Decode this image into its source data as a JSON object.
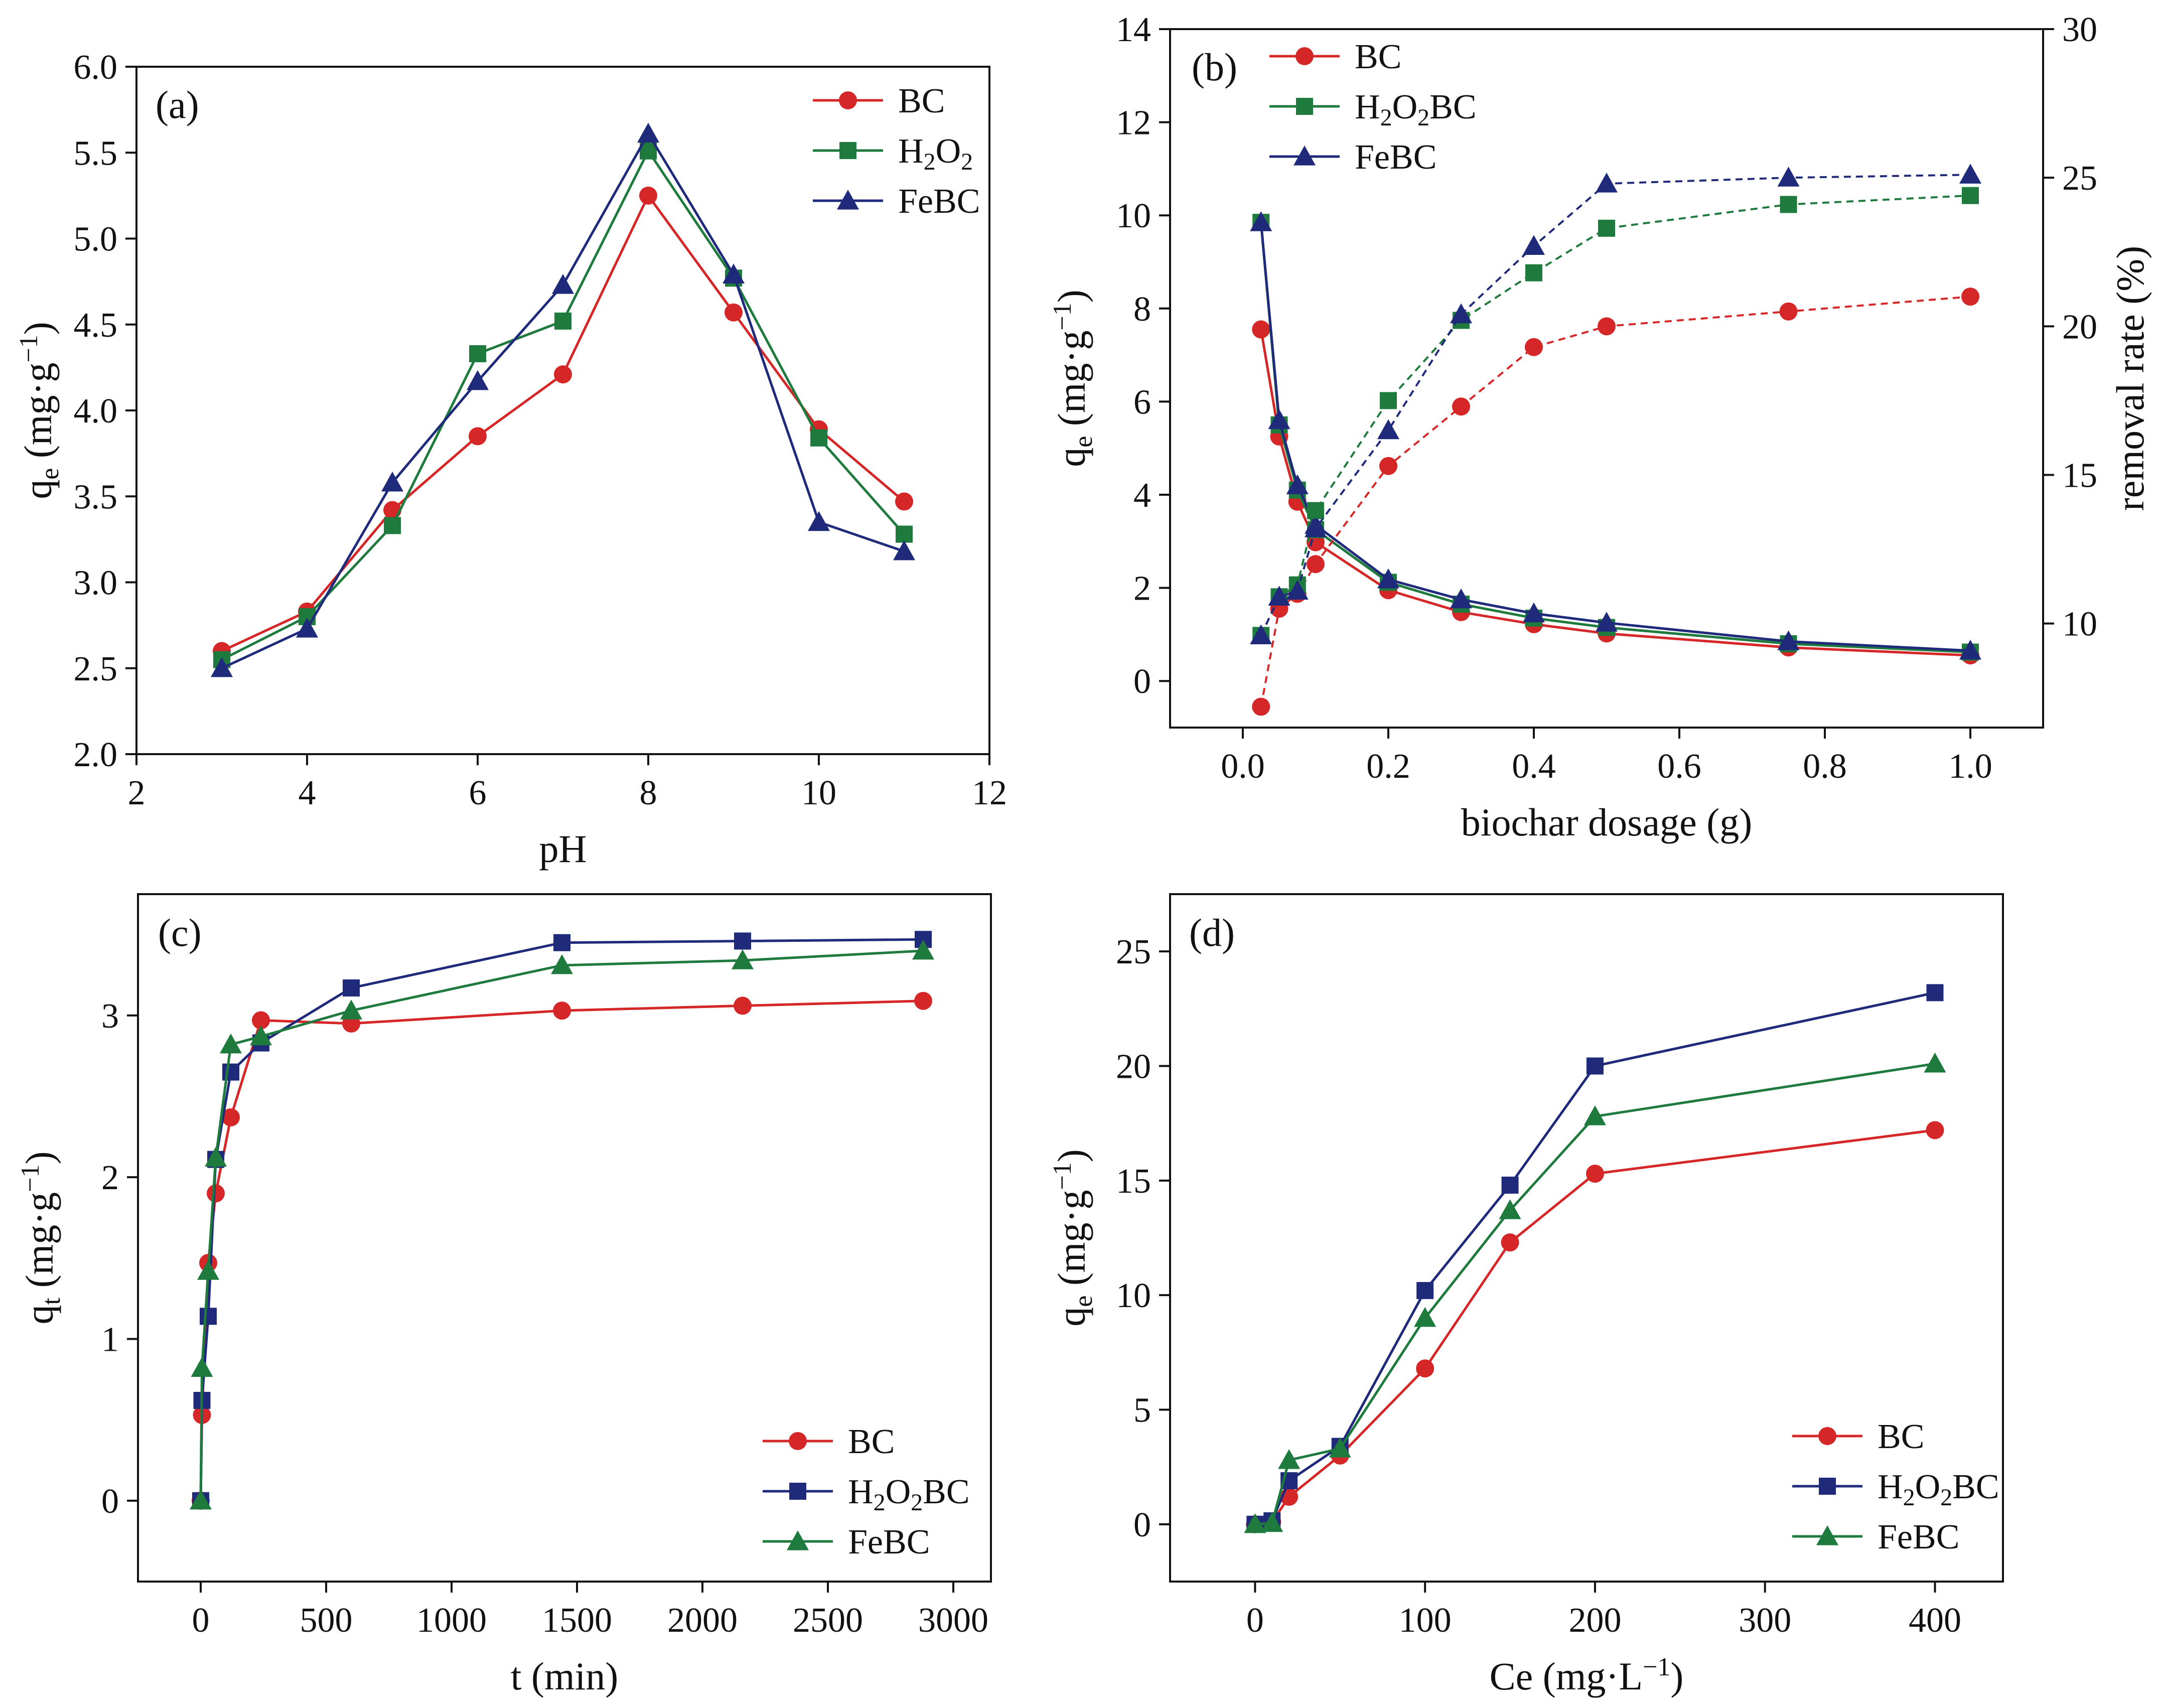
{
  "colors": {
    "BC": "#d62728",
    "H2O2BC": "#1f7a3e",
    "FeBC": "#1f2a7a"
  },
  "chart_data": [
    {
      "panel": "(a)",
      "type": "line",
      "xlabel": "pH",
      "ylabel": "qe (mg·g⁻¹)",
      "ylabel_parts": {
        "base": "q",
        "sub": "e",
        "unit_pre": " (mg·g",
        "sup": "−1",
        "unit_post": ")"
      },
      "xlim": [
        2,
        12
      ],
      "ylim": [
        2.0,
        6.0
      ],
      "xticks": [
        2,
        4,
        6,
        8,
        10,
        12
      ],
      "yticks": [
        2.0,
        2.5,
        3.0,
        3.5,
        4.0,
        4.5,
        5.0,
        5.5,
        6.0
      ],
      "ytick_labels": [
        "2.0",
        "2.5",
        "3.0",
        "3.5",
        "4.0",
        "4.5",
        "5.0",
        "5.5",
        "6.0"
      ],
      "legend_position": "top-right",
      "series": [
        {
          "name": "BC",
          "legend_label": "BC",
          "color": "#d62728",
          "marker": "circle",
          "x": [
            3,
            4,
            5,
            6,
            7,
            8,
            9,
            10,
            11
          ],
          "y": [
            2.6,
            2.83,
            3.42,
            3.85,
            4.21,
            5.25,
            4.57,
            3.89,
            3.47
          ]
        },
        {
          "name": "H2O2",
          "legend_label": "H₂O₂",
          "legend_parts": [
            "H",
            "2",
            "O",
            "2",
            ""
          ],
          "color": "#1f7a3e",
          "marker": "square",
          "x": [
            3,
            4,
            5,
            6,
            7,
            8,
            9,
            10,
            11
          ],
          "y": [
            2.55,
            2.8,
            3.33,
            4.33,
            4.52,
            5.51,
            4.77,
            3.84,
            3.28
          ]
        },
        {
          "name": "FeBC",
          "legend_label": "FeBC",
          "color": "#1f2a7a",
          "marker": "triangle",
          "x": [
            3,
            4,
            5,
            6,
            7,
            8,
            9,
            10,
            11
          ],
          "y": [
            2.5,
            2.73,
            3.58,
            4.17,
            4.73,
            5.61,
            4.79,
            3.35,
            3.18
          ]
        }
      ]
    },
    {
      "panel": "(b)",
      "type": "line",
      "xlabel": "biochar dosage (g)",
      "ylabel": "qe (mg·g⁻¹)",
      "ylabel_parts": {
        "base": "q",
        "sub": "e",
        "unit_pre": " (mg·g",
        "sup": "−1",
        "unit_post": ")"
      },
      "ylabel_right": "removal rate (%)",
      "xlim": [
        -0.1,
        1.1
      ],
      "ylim": [
        -1,
        14
      ],
      "ylim_right": [
        6.5,
        30
      ],
      "xticks": [
        0.0,
        0.2,
        0.4,
        0.6,
        0.8,
        1.0
      ],
      "xtick_labels": [
        "0.0",
        "0.2",
        "0.4",
        "0.6",
        "0.8",
        "1.0"
      ],
      "yticks": [
        0,
        2,
        4,
        6,
        8,
        10,
        12,
        14
      ],
      "yticks_right": [
        10,
        15,
        20,
        25,
        30
      ],
      "legend_position": "top-left",
      "series": [
        {
          "name": "BC",
          "legend_label": "BC",
          "color": "#d62728",
          "marker": "circle",
          "axis": "left",
          "x": [
            0.025,
            0.05,
            0.075,
            0.1,
            0.2,
            0.3,
            0.4,
            0.5,
            0.75,
            1.0
          ],
          "y": [
            7.55,
            5.25,
            3.85,
            2.98,
            1.95,
            1.48,
            1.22,
            1.02,
            0.72,
            0.55
          ]
        },
        {
          "name": "H2O2BC",
          "legend_label": "H₂O₂BC",
          "legend_parts": [
            "H",
            "2",
            "O",
            "2",
            "BC"
          ],
          "color": "#1f7a3e",
          "marker": "square",
          "axis": "left",
          "x": [
            0.025,
            0.05,
            0.075,
            0.1,
            0.2,
            0.3,
            0.4,
            0.5,
            0.75,
            1.0
          ],
          "y": [
            9.85,
            5.5,
            4.1,
            3.25,
            2.12,
            1.65,
            1.35,
            1.15,
            0.8,
            0.62
          ]
        },
        {
          "name": "FeBC",
          "legend_label": "FeBC",
          "color": "#1f2a7a",
          "marker": "triangle",
          "axis": "left",
          "x": [
            0.025,
            0.05,
            0.075,
            0.1,
            0.2,
            0.3,
            0.4,
            0.5,
            0.75,
            1.0
          ],
          "y": [
            9.85,
            5.6,
            4.2,
            3.35,
            2.18,
            1.75,
            1.45,
            1.25,
            0.85,
            0.65
          ]
        },
        {
          "name": "BC removal",
          "color": "#d62728",
          "marker": "circle",
          "axis": "right",
          "dashed": true,
          "x": [
            0.025,
            0.05,
            0.075,
            0.1,
            0.2,
            0.3,
            0.4,
            0.5,
            0.75,
            1.0
          ],
          "y": [
            7.2,
            10.5,
            11.0,
            12.0,
            15.3,
            17.3,
            19.3,
            20.0,
            20.5,
            21.0
          ]
        },
        {
          "name": "H2O2BC removal",
          "color": "#1f7a3e",
          "marker": "square",
          "axis": "right",
          "dashed": true,
          "x": [
            0.025,
            0.05,
            0.075,
            0.1,
            0.2,
            0.3,
            0.4,
            0.5,
            0.75,
            1.0
          ],
          "y": [
            9.6,
            10.9,
            11.3,
            13.8,
            17.5,
            20.2,
            21.8,
            23.3,
            24.1,
            24.4
          ]
        },
        {
          "name": "FeBC removal",
          "color": "#1f2a7a",
          "marker": "triangle",
          "axis": "right",
          "dashed": true,
          "x": [
            0.025,
            0.05,
            0.075,
            0.1,
            0.2,
            0.3,
            0.4,
            0.5,
            0.75,
            1.0
          ],
          "y": [
            9.6,
            10.9,
            11.1,
            13.2,
            16.5,
            20.4,
            22.7,
            24.8,
            25.0,
            25.1
          ]
        }
      ]
    },
    {
      "panel": "(c)",
      "type": "line",
      "xlabel": "t (min)",
      "ylabel": "qt (mg·g⁻¹)",
      "ylabel_parts": {
        "base": "q",
        "sub": "t",
        "unit_pre": " (mg·g",
        "sup": "−1",
        "unit_post": ")"
      },
      "xlim": [
        -250,
        3150
      ],
      "ylim": [
        -0.5,
        3.75
      ],
      "xticks": [
        0,
        500,
        1000,
        1500,
        2000,
        2500,
        3000
      ],
      "yticks": [
        0,
        1,
        2,
        3
      ],
      "legend_position": "bottom-right",
      "series": [
        {
          "name": "BC",
          "legend_label": "BC",
          "color": "#d62728",
          "marker": "circle",
          "x": [
            0,
            5,
            30,
            60,
            120,
            240,
            600,
            1440,
            2160,
            2880
          ],
          "y": [
            0,
            0.53,
            1.47,
            1.9,
            2.37,
            2.97,
            2.95,
            3.03,
            3.06,
            3.09
          ]
        },
        {
          "name": "H2O2BC",
          "legend_label": "H₂O₂BC",
          "legend_parts": [
            "H",
            "2",
            "O",
            "2",
            "BC"
          ],
          "color": "#1f2a7a",
          "marker": "square",
          "x": [
            0,
            5,
            30,
            60,
            120,
            240,
            600,
            1440,
            2160,
            2880
          ],
          "y": [
            0,
            0.62,
            1.14,
            2.11,
            2.65,
            2.83,
            3.17,
            3.45,
            3.46,
            3.47
          ]
        },
        {
          "name": "FeBC",
          "legend_label": "FeBC",
          "color": "#1f7a3e",
          "marker": "triangle",
          "x": [
            0,
            5,
            30,
            60,
            120,
            240,
            600,
            1440,
            2160,
            2880
          ],
          "y": [
            0,
            0.82,
            1.42,
            2.12,
            2.82,
            2.87,
            3.03,
            3.31,
            3.34,
            3.4
          ]
        }
      ]
    },
    {
      "panel": "(d)",
      "type": "line",
      "xlabel": "Ce (mg·L⁻¹)",
      "xlabel_parts": {
        "base": "Ce (mg·L",
        "sup": "−1",
        "post": ")"
      },
      "ylabel": "qe (mg·g⁻¹)",
      "ylabel_parts": {
        "base": "q",
        "sub": "e",
        "unit_pre": " (mg·g",
        "sup": "−1",
        "unit_post": ")"
      },
      "xlim": [
        -50,
        440
      ],
      "ylim": [
        -2.5,
        27.5
      ],
      "xticks": [
        0,
        100,
        200,
        300,
        400
      ],
      "yticks": [
        0,
        5,
        10,
        15,
        20,
        25
      ],
      "legend_position": "bottom-right",
      "series": [
        {
          "name": "BC",
          "legend_label": "BC",
          "color": "#d62728",
          "marker": "circle",
          "x": [
            0,
            10,
            20,
            50,
            100,
            150,
            200,
            400
          ],
          "y": [
            0,
            0.1,
            1.2,
            3.0,
            6.8,
            12.3,
            15.3,
            17.2
          ]
        },
        {
          "name": "H2O2BC",
          "legend_label": "H₂O₂BC",
          "legend_parts": [
            "H",
            "2",
            "O",
            "2",
            "BC"
          ],
          "color": "#1f2a7a",
          "marker": "square",
          "x": [
            0,
            10,
            20,
            50,
            100,
            150,
            200,
            400
          ],
          "y": [
            0,
            0.15,
            1.9,
            3.4,
            10.2,
            14.8,
            20.0,
            23.2
          ]
        },
        {
          "name": "FeBC",
          "legend_label": "FeBC",
          "color": "#1f7a3e",
          "marker": "triangle",
          "x": [
            0,
            10,
            20,
            50,
            100,
            150,
            200,
            400
          ],
          "y": [
            0,
            0.05,
            2.8,
            3.3,
            9.0,
            13.7,
            17.8,
            20.1
          ]
        }
      ]
    }
  ]
}
